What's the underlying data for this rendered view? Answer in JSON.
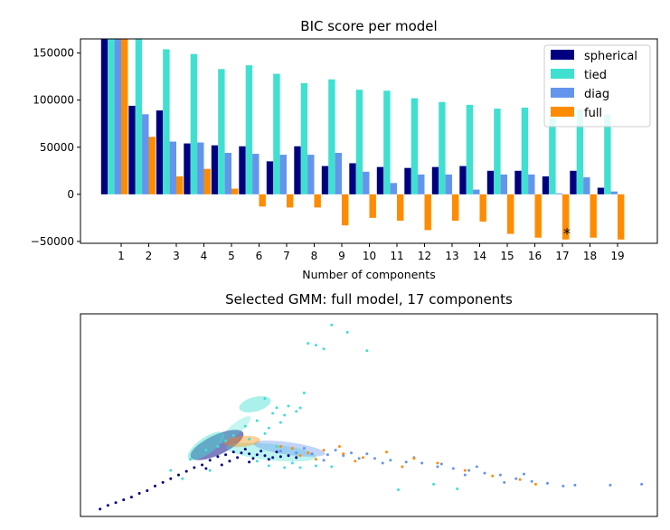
{
  "chart_data": [
    {
      "type": "bar",
      "title": "BIC score per model",
      "xlabel": "Number of components",
      "ylabel": "",
      "categories": [
        "1",
        "2",
        "3",
        "4",
        "5",
        "6",
        "7",
        "8",
        "9",
        "10",
        "11",
        "12",
        "13",
        "14",
        "15",
        "16",
        "17",
        "18",
        "19"
      ],
      "ylim": [
        -52000,
        165000
      ],
      "yticks": [
        -50000,
        0,
        50000,
        100000,
        150000
      ],
      "ytick_labels": [
        "−50000",
        "0",
        "50000",
        "100000",
        "150000"
      ],
      "legend_position": "top-right",
      "grid": false,
      "series": [
        {
          "name": "spherical",
          "color": "#000080",
          "values": [
            165000,
            94000,
            89000,
            54000,
            52000,
            51000,
            35000,
            51000,
            30000,
            33000,
            29000,
            28000,
            29000,
            30000,
            25000,
            25000,
            19000,
            25000,
            7000
          ]
        },
        {
          "name": "tied",
          "color": "#40e0d0",
          "values": [
            165000,
            165000,
            154000,
            149000,
            133000,
            137000,
            128000,
            118000,
            122000,
            111000,
            110000,
            102000,
            98000,
            95000,
            91000,
            92000,
            81000,
            90000,
            85000
          ]
        },
        {
          "name": "diag",
          "color": "#6495ed",
          "values": [
            165000,
            85000,
            56000,
            55000,
            44000,
            43000,
            42000,
            42000,
            44000,
            24000,
            12000,
            21000,
            21000,
            5000,
            21000,
            21000,
            1000,
            18000,
            3000
          ]
        },
        {
          "name": "full",
          "color": "#ff8c00",
          "values": [
            165000,
            61000,
            19000,
            27000,
            6000,
            -13000,
            -14000,
            -14000,
            -33000,
            -25000,
            -28000,
            -38000,
            -28000,
            -29000,
            -42000,
            -46000,
            -48000,
            -46000,
            -48000
          ]
        }
      ],
      "annotation": {
        "text": "*",
        "x": 17,
        "y": -37000
      }
    },
    {
      "type": "scatter",
      "title": "Selected GMM: full model, 17 components",
      "xlabel": "",
      "ylabel": "",
      "xlim": [
        -4.2,
        10.5
      ],
      "ylim": [
        -2.2,
        8.8
      ],
      "axis_ticks": false,
      "series": [
        {
          "name": "",
          "color": "#000080",
          "points": [
            [
              -3.7,
              -1.8
            ],
            [
              -3.5,
              -1.6
            ],
            [
              -3.3,
              -1.45
            ],
            [
              -3.1,
              -1.3
            ],
            [
              -2.9,
              -1.15
            ],
            [
              -2.7,
              -0.95
            ],
            [
              -2.5,
              -0.8
            ],
            [
              -2.3,
              -0.55
            ],
            [
              -2.1,
              -0.35
            ],
            [
              -1.9,
              -0.15
            ],
            [
              -1.7,
              0.05
            ],
            [
              -1.5,
              0.25
            ],
            [
              -1.3,
              0.45
            ],
            [
              -1.1,
              0.6
            ],
            [
              -0.9,
              0.85
            ],
            [
              -0.7,
              1.05
            ],
            [
              -0.5,
              1.15
            ],
            [
              -0.3,
              1.3
            ],
            [
              -0.1,
              1.25
            ],
            [
              0.1,
              1.2
            ],
            [
              0.3,
              1.15
            ],
            [
              0.5,
              1.1
            ],
            [
              0.7,
              1.0
            ],
            [
              -0.2,
              1.0
            ],
            [
              0.2,
              0.95
            ],
            [
              0.6,
              0.9
            ],
            [
              0.0,
              1.45
            ],
            [
              0.4,
              1.35
            ],
            [
              -0.4,
              0.8
            ],
            [
              0.9,
              1.05
            ],
            [
              1.1,
              1.1
            ],
            [
              0.8,
              1.3
            ],
            [
              -0.6,
              0.6
            ],
            [
              1.3,
              1.0
            ],
            [
              0.1,
              0.75
            ],
            [
              -1.0,
              0.4
            ]
          ]
        },
        {
          "name": "",
          "color": "#40e0d0",
          "points": [
            [
              2.2,
              8.2
            ],
            [
              2.6,
              7.8
            ],
            [
              1.6,
              7.2
            ],
            [
              2.0,
              6.9
            ],
            [
              1.8,
              7.1
            ],
            [
              3.1,
              6.8
            ],
            [
              0.5,
              4.2
            ],
            [
              1.5,
              4.5
            ],
            [
              0.8,
              3.7
            ],
            [
              1.1,
              3.8
            ],
            [
              1.4,
              3.7
            ],
            [
              0.7,
              3.4
            ],
            [
              1.0,
              3.3
            ],
            [
              1.3,
              3.5
            ],
            [
              0.3,
              3.0
            ],
            [
              0.0,
              2.7
            ],
            [
              -0.3,
              2.2
            ],
            [
              0.6,
              2.6
            ],
            [
              -0.5,
              1.9
            ],
            [
              -1.0,
              1.4
            ],
            [
              -1.4,
              0.9
            ],
            [
              -1.9,
              0.3
            ],
            [
              -0.7,
              1.6
            ],
            [
              0.1,
              2.0
            ],
            [
              0.5,
              2.3
            ],
            [
              0.9,
              2.9
            ],
            [
              0.3,
              0.8
            ],
            [
              0.6,
              0.55
            ],
            [
              1.0,
              0.45
            ],
            [
              1.4,
              0.45
            ],
            [
              1.8,
              0.55
            ],
            [
              2.2,
              0.5
            ],
            [
              1.2,
              0.7
            ],
            [
              -0.9,
              0.3
            ],
            [
              -1.6,
              -0.15
            ],
            [
              3.9,
              -0.75
            ],
            [
              5.4,
              -0.7
            ],
            [
              4.8,
              -0.45
            ],
            [
              0.8,
              1.6
            ]
          ]
        },
        {
          "name": "",
          "color": "#6495ed",
          "points": [
            [
              0.9,
              1.35
            ],
            [
              1.3,
              1.25
            ],
            [
              1.7,
              1.2
            ],
            [
              2.1,
              1.15
            ],
            [
              2.5,
              1.1
            ],
            [
              2.9,
              0.95
            ],
            [
              3.3,
              0.95
            ],
            [
              3.7,
              0.85
            ],
            [
              4.1,
              0.75
            ],
            [
              4.5,
              0.7
            ],
            [
              4.9,
              0.5
            ],
            [
              5.3,
              0.4
            ],
            [
              5.7,
              0.3
            ],
            [
              6.1,
              0.15
            ],
            [
              6.5,
              0.05
            ],
            [
              6.9,
              -0.15
            ],
            [
              7.3,
              -0.3
            ],
            [
              7.7,
              -0.4
            ],
            [
              8.1,
              -0.55
            ],
            [
              9.3,
              -0.5
            ],
            [
              10.1,
              -0.45
            ],
            [
              2.0,
              0.85
            ],
            [
              3.5,
              0.7
            ],
            [
              5.0,
              0.65
            ],
            [
              1.5,
              1.5
            ],
            [
              2.3,
              1.4
            ],
            [
              2.7,
              1.25
            ],
            [
              4.3,
              1.0
            ],
            [
              5.9,
              0.5
            ],
            [
              7.1,
              0.1
            ],
            [
              8.4,
              -0.5
            ],
            [
              3.1,
              1.2
            ],
            [
              6.6,
              -0.35
            ],
            [
              5.6,
              0.05
            ]
          ]
        },
        {
          "name": "",
          "color": "#ff8c00",
          "points": [
            [
              0.9,
              1.6
            ],
            [
              1.2,
              1.5
            ],
            [
              1.6,
              1.25
            ],
            [
              2.0,
              1.4
            ],
            [
              2.5,
              1.2
            ],
            [
              1.8,
              0.9
            ],
            [
              3.0,
              1.0
            ],
            [
              3.6,
              1.3
            ],
            [
              4.3,
              0.95
            ],
            [
              4.9,
              0.7
            ],
            [
              5.6,
              0.3
            ],
            [
              6.3,
              0.0
            ],
            [
              7.0,
              -0.2
            ],
            [
              7.4,
              -0.45
            ],
            [
              2.4,
              1.6
            ],
            [
              1.4,
              1.1
            ],
            [
              2.8,
              0.8
            ],
            [
              4.0,
              0.5
            ]
          ]
        }
      ]
    }
  ]
}
